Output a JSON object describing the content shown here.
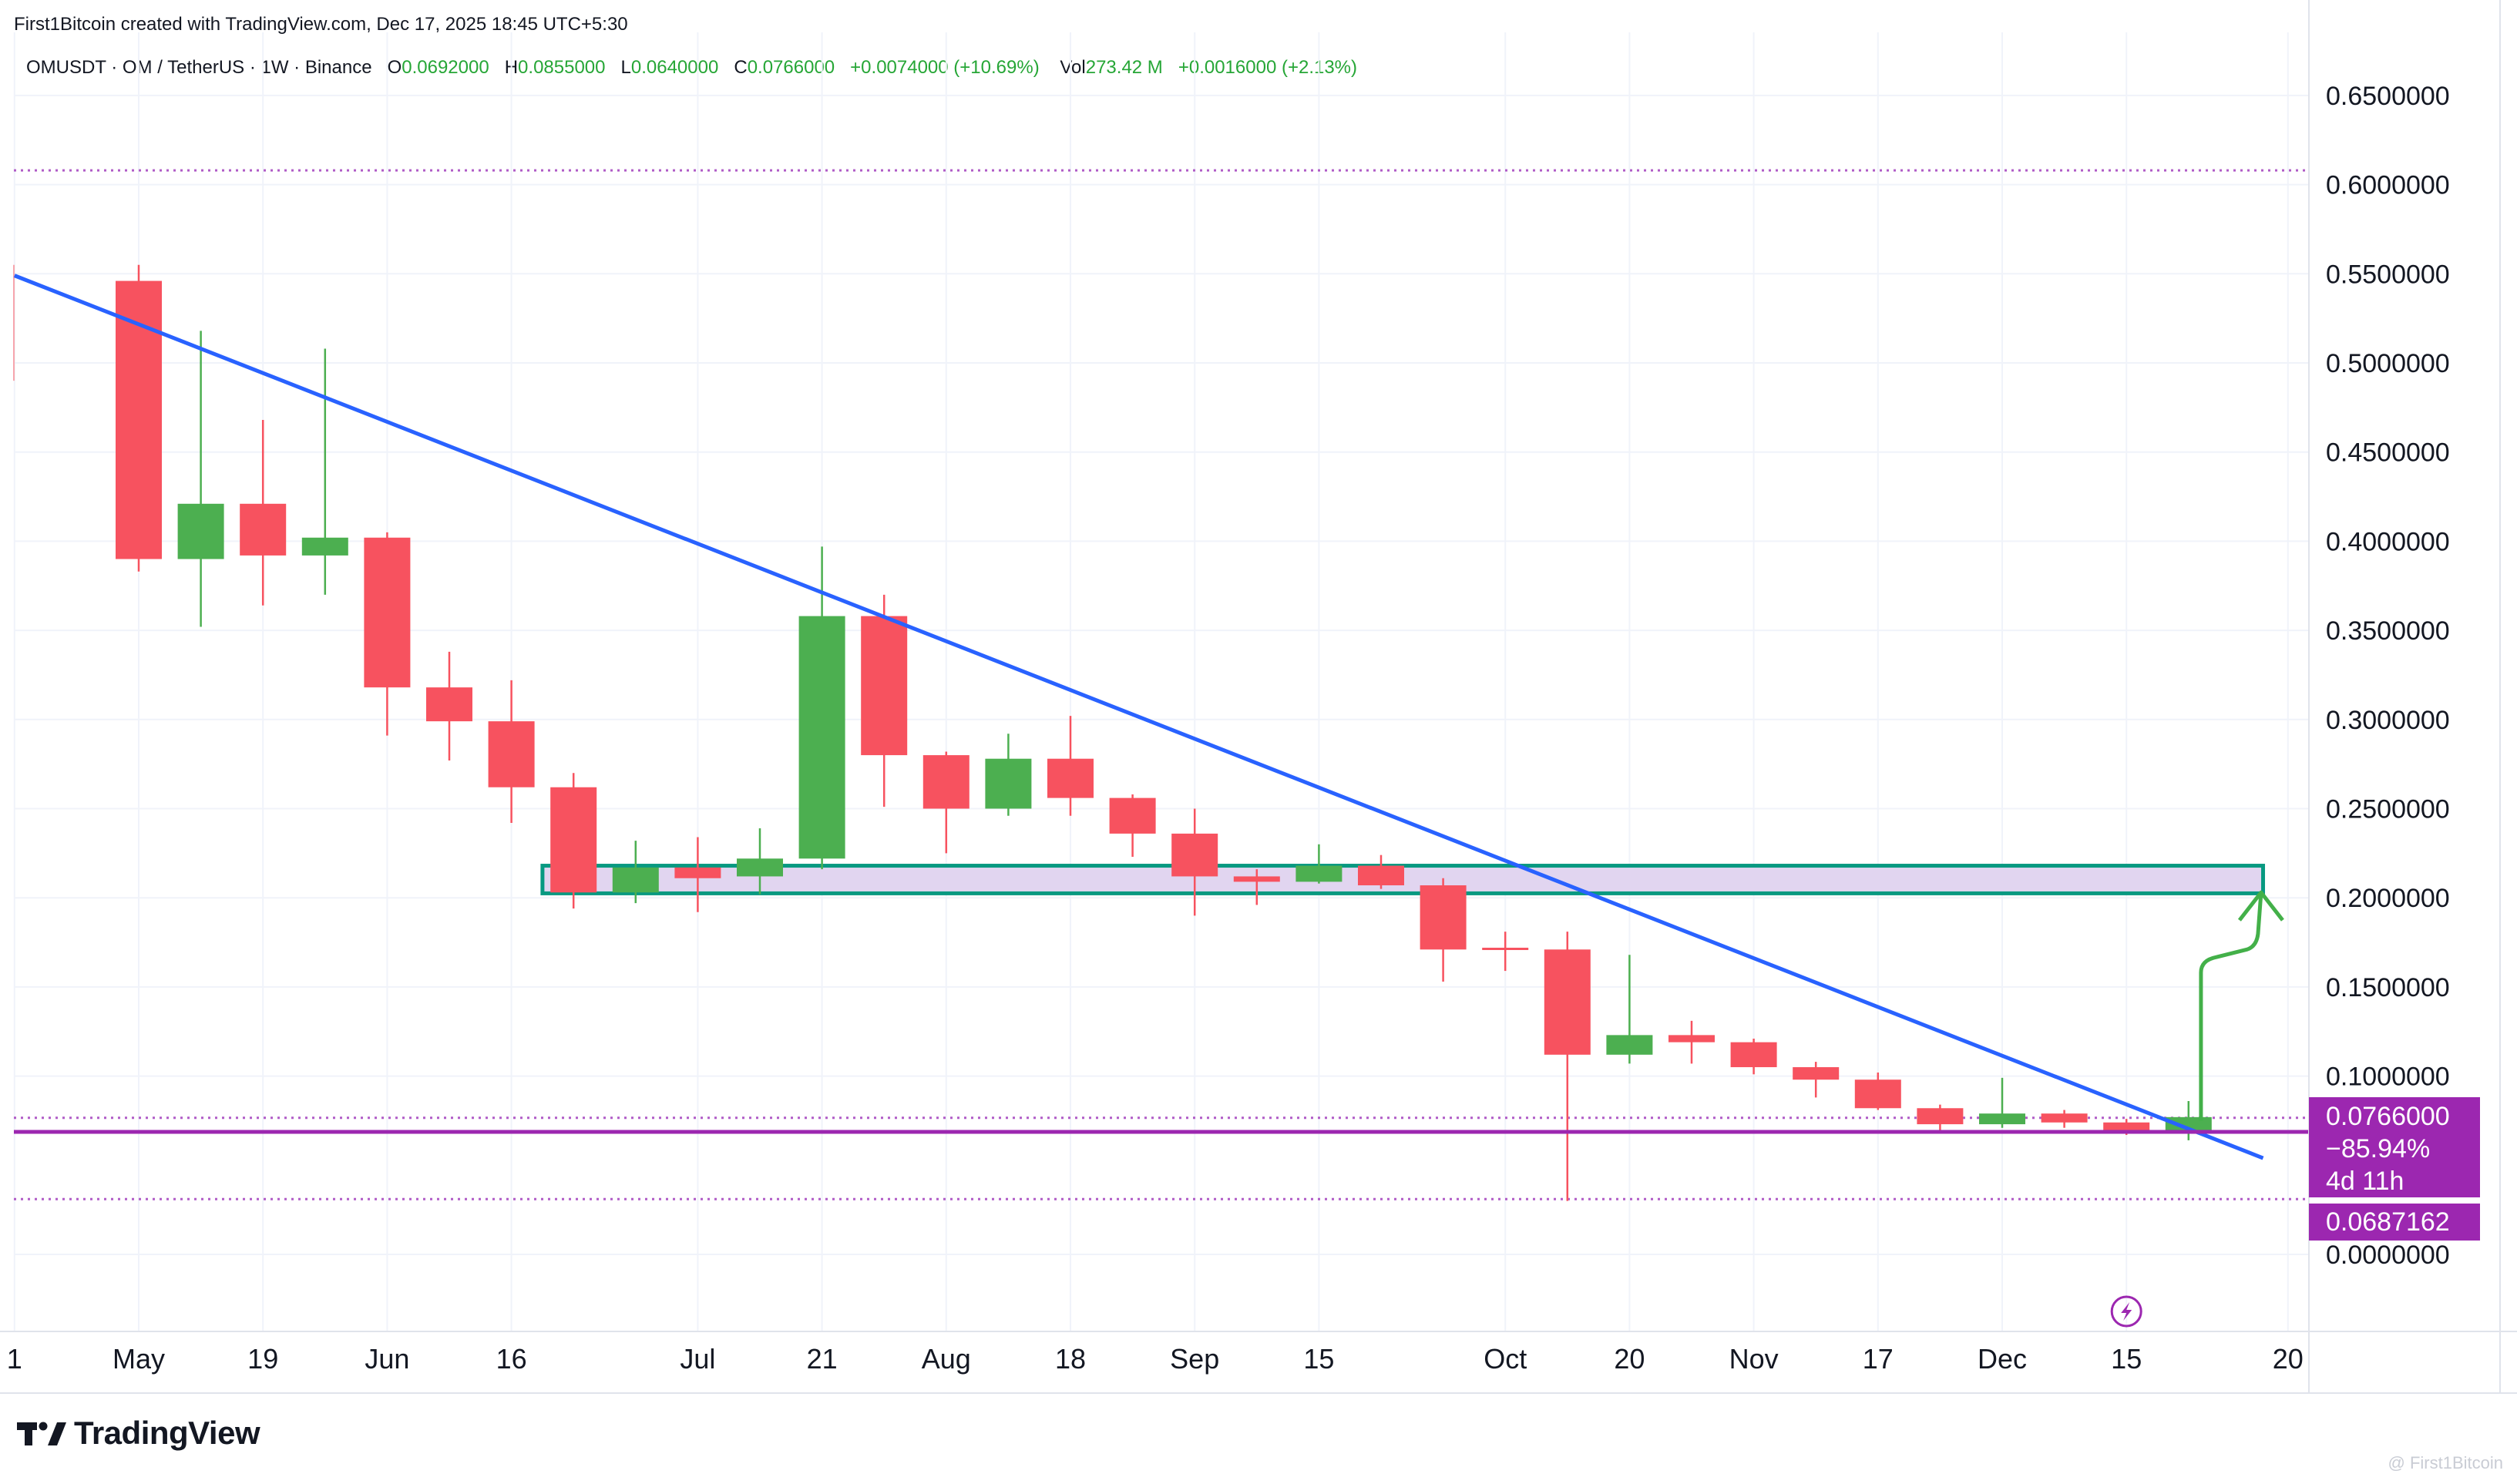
{
  "header": {
    "credit": "First1Bitcoin created with TradingView.com, Dec 17, 2025 18:45 UTC+5:30"
  },
  "legend": {
    "symbol": "OMUSDT · OM / TetherUS · 1W · Binance",
    "o_key": "O",
    "o_val": "0.0692000",
    "h_key": "H",
    "h_val": "0.0855000",
    "l_key": "L",
    "l_val": "0.0640000",
    "c_key": "C",
    "c_val": "0.0766000",
    "change": "+0.0074000 (+10.69%)",
    "vol_key": "Vol",
    "vol_val": "273.42 M",
    "vol_change": "+0.0016000 (+2.13%)"
  },
  "labels": {
    "price": "0.0766000",
    "pct": "−85.94%",
    "countdown": "4d 11h",
    "support": "0.0687162"
  },
  "branding": {
    "logo_text": "TradingView",
    "watermark": "@ First1Bitcoin"
  },
  "colors": {
    "up": "#4caf50",
    "down": "#f7525f",
    "trendline": "#2962ff",
    "support_line": "#9c27b0",
    "zone_fill": "#e1d5f0",
    "zone_border": "#089981",
    "arrow": "#43b049",
    "dotted": "#b05cc7"
  },
  "chart_data": {
    "type": "candlestick",
    "title": "OMUSDT · OM / TetherUS · 1W · Binance",
    "ylim": [
      -0.045,
      0.675
    ],
    "y_ticks": [
      "0.0000000",
      "0.1000000",
      "0.1500000",
      "0.2000000",
      "0.2500000",
      "0.3000000",
      "0.3500000",
      "0.4000000",
      "0.4500000",
      "0.5000000",
      "0.5500000",
      "0.6000000",
      "0.6500000"
    ],
    "y_tick_values": [
      0.0,
      0.1,
      0.15,
      0.2,
      0.25,
      0.3,
      0.35,
      0.4,
      0.45,
      0.5,
      0.55,
      0.6,
      0.65
    ],
    "x_labels": [
      "1",
      "May",
      "19",
      "Jun",
      "16",
      "Jul",
      "21",
      "Aug",
      "18",
      "Sep",
      "15",
      "Oct",
      "20",
      "Nov",
      "17",
      "Dec",
      "15",
      "20"
    ],
    "x_label_index": [
      -2,
      0,
      2,
      4,
      6,
      9,
      11,
      13,
      15,
      17,
      19,
      22,
      24,
      26,
      28,
      30,
      32,
      34.6
    ],
    "candles": [
      {
        "o": 0.546,
        "h": 0.555,
        "l": 0.383,
        "c": 0.39
      },
      {
        "o": 0.39,
        "h": 0.518,
        "l": 0.352,
        "c": 0.421
      },
      {
        "o": 0.421,
        "h": 0.468,
        "l": 0.364,
        "c": 0.392
      },
      {
        "o": 0.392,
        "h": 0.508,
        "l": 0.37,
        "c": 0.402
      },
      {
        "o": 0.402,
        "h": 0.405,
        "l": 0.291,
        "c": 0.318
      },
      {
        "o": 0.318,
        "h": 0.338,
        "l": 0.277,
        "c": 0.299
      },
      {
        "o": 0.299,
        "h": 0.322,
        "l": 0.242,
        "c": 0.262
      },
      {
        "o": 0.262,
        "h": 0.27,
        "l": 0.194,
        "c": 0.203
      },
      {
        "o": 0.203,
        "h": 0.232,
        "l": 0.197,
        "c": 0.217
      },
      {
        "o": 0.217,
        "h": 0.234,
        "l": 0.192,
        "c": 0.211
      },
      {
        "o": 0.212,
        "h": 0.239,
        "l": 0.202,
        "c": 0.222
      },
      {
        "o": 0.222,
        "h": 0.397,
        "l": 0.216,
        "c": 0.358
      },
      {
        "o": 0.358,
        "h": 0.37,
        "l": 0.251,
        "c": 0.28
      },
      {
        "o": 0.28,
        "h": 0.282,
        "l": 0.225,
        "c": 0.25
      },
      {
        "o": 0.25,
        "h": 0.292,
        "l": 0.246,
        "c": 0.278
      },
      {
        "o": 0.278,
        "h": 0.302,
        "l": 0.246,
        "c": 0.256
      },
      {
        "o": 0.256,
        "h": 0.258,
        "l": 0.223,
        "c": 0.236
      },
      {
        "o": 0.236,
        "h": 0.25,
        "l": 0.19,
        "c": 0.212
      },
      {
        "o": 0.212,
        "h": 0.216,
        "l": 0.196,
        "c": 0.209
      },
      {
        "o": 0.209,
        "h": 0.23,
        "l": 0.208,
        "c": 0.218
      },
      {
        "o": 0.218,
        "h": 0.224,
        "l": 0.205,
        "c": 0.207
      },
      {
        "o": 0.207,
        "h": 0.211,
        "l": 0.153,
        "c": 0.171
      },
      {
        "o": 0.172,
        "h": 0.181,
        "l": 0.159,
        "c": 0.171
      },
      {
        "o": 0.171,
        "h": 0.181,
        "l": 0.03,
        "c": 0.112
      },
      {
        "o": 0.112,
        "h": 0.168,
        "l": 0.107,
        "c": 0.123
      },
      {
        "o": 0.123,
        "h": 0.131,
        "l": 0.107,
        "c": 0.119
      },
      {
        "o": 0.119,
        "h": 0.121,
        "l": 0.101,
        "c": 0.105
      },
      {
        "o": 0.105,
        "h": 0.108,
        "l": 0.088,
        "c": 0.098
      },
      {
        "o": 0.098,
        "h": 0.102,
        "l": 0.081,
        "c": 0.082
      },
      {
        "o": 0.082,
        "h": 0.084,
        "l": 0.069,
        "c": 0.073
      },
      {
        "o": 0.073,
        "h": 0.099,
        "l": 0.071,
        "c": 0.079
      },
      {
        "o": 0.079,
        "h": 0.081,
        "l": 0.071,
        "c": 0.074
      },
      {
        "o": 0.074,
        "h": 0.076,
        "l": 0.067,
        "c": 0.069
      },
      {
        "o": 0.069,
        "h": 0.086,
        "l": 0.064,
        "c": 0.077
      }
    ],
    "trendline": {
      "start_index": -2,
      "start_value": 0.549,
      "end_index": 34.2,
      "end_value": 0.054
    },
    "resistance_zone": {
      "from_index": 6.5,
      "to_index": 34.2,
      "low": 0.2025,
      "high": 0.218
    },
    "support_line_value": 0.0687162,
    "current_price_value": 0.0766,
    "dotted_levels": [
      0.608,
      0.0766,
      0.031
    ],
    "projection_arrow": {
      "index": 33.2,
      "from_value": 0.075,
      "to_value": 0.203
    }
  }
}
